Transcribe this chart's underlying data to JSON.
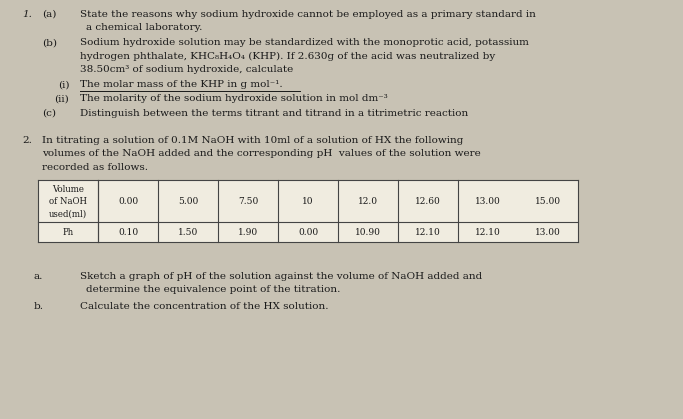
{
  "background_color": "#c8c2b4",
  "page_color": "#e8e4dc",
  "text_color": "#1a1a1a",
  "q1_number": "1.",
  "q1a_label": "(a)",
  "q1a_line1": "State the reasons why sodium hydroxide cannot be employed as a primary standard in",
  "q1a_line2": "a chemical laboratory.",
  "q1b_label": "(b)",
  "q1b_line1": "Sodium hydroxide solution may be standardized with the monoprotic acid, potassium",
  "q1b_line2": "hydrogen phthalate, KHC₈H₄O₄ (KHP). If 2.630g of the acid was neutralized by",
  "q1b_line3": "38.50cm³ of sodium hydroxide, calculate",
  "q1i_label": "(i)",
  "q1i_text": "The molar mass of the KHP in g mol⁻¹.",
  "q1ii_label": "(ii)",
  "q1ii_text": "The molarity of the sodium hydroxide solution in mol dm⁻³",
  "q1c_label": "(c)",
  "q1c_text": "Distinguish between the terms titrant and titrand in a titrimetric reaction",
  "q2_number": "2.",
  "q2_line1": "In titrating a solution of 0.1M NaOH with 10ml of a solution of HX the following",
  "q2_line2": "volumes of the NaOH added and the corresponding pH  values of the solution were",
  "q2_line3": "recorded as follows.",
  "table_vol_header": [
    "Volume",
    "of NaOH",
    "used(ml)"
  ],
  "table_ph_header": "Ph",
  "table_volumes": [
    "0.00",
    "5.00",
    "7.50",
    "10",
    "12.0",
    "12.60",
    "13.00",
    "15.00"
  ],
  "table_ph_vals": [
    "0.10",
    "1.50",
    "1.90",
    "0.00",
    "10.90",
    "12.10",
    "12.10",
    "13.00"
  ],
  "qa_label": "a.",
  "qa_line1": "Sketch a graph of pH of the solution against the volume of NaOH added and",
  "qa_line2": "determine the equivalence point of the titration.",
  "qb_label": "b.",
  "qb_text": "Calculate the concentration of the HX solution."
}
